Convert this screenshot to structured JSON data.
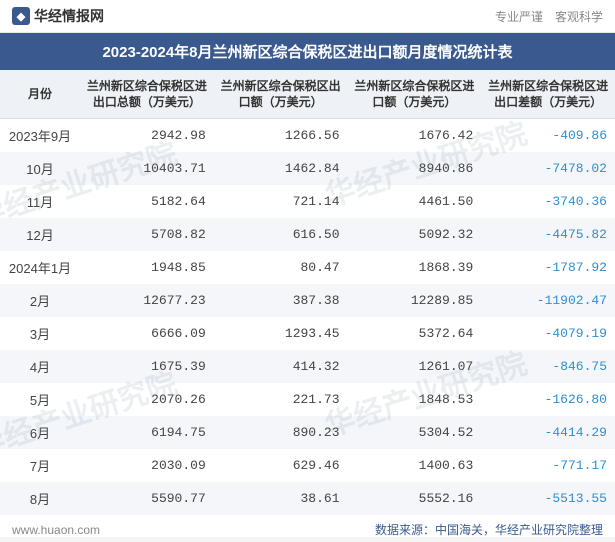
{
  "header": {
    "site_name": "华经情报网",
    "tagline": "专业严谨　客观科学"
  },
  "title": "2023-2024年8月兰州新区综合保税区进出口额月度情况统计表",
  "table": {
    "columns": [
      "月份",
      "兰州新区综合保税区进出口总额（万美元）",
      "兰州新区综合保税区出口额（万美元）",
      "兰州新区综合保税区进口额（万美元）",
      "兰州新区综合保税区进出口差额（万美元）"
    ],
    "rows": [
      {
        "month": "2023年9月",
        "total": "2942.98",
        "export": "1266.56",
        "import": "1676.42",
        "diff": "-409.86"
      },
      {
        "month": "10月",
        "total": "10403.71",
        "export": "1462.84",
        "import": "8940.86",
        "diff": "-7478.02"
      },
      {
        "month": "11月",
        "total": "5182.64",
        "export": "721.14",
        "import": "4461.50",
        "diff": "-3740.36"
      },
      {
        "month": "12月",
        "total": "5708.82",
        "export": "616.50",
        "import": "5092.32",
        "diff": "-4475.82"
      },
      {
        "month": "2024年1月",
        "total": "1948.85",
        "export": "80.47",
        "import": "1868.39",
        "diff": "-1787.92"
      },
      {
        "month": "2月",
        "total": "12677.23",
        "export": "387.38",
        "import": "12289.85",
        "diff": "-11902.47"
      },
      {
        "month": "3月",
        "total": "6666.09",
        "export": "1293.45",
        "import": "5372.64",
        "diff": "-4079.19"
      },
      {
        "month": "4月",
        "total": "1675.39",
        "export": "414.32",
        "import": "1261.07",
        "diff": "-846.75"
      },
      {
        "month": "5月",
        "total": "2070.26",
        "export": "221.73",
        "import": "1848.53",
        "diff": "-1626.80"
      },
      {
        "month": "6月",
        "total": "6194.75",
        "export": "890.23",
        "import": "5304.52",
        "diff": "-4414.29"
      },
      {
        "month": "7月",
        "total": "2030.09",
        "export": "629.46",
        "import": "1400.63",
        "diff": "-771.17"
      },
      {
        "month": "8月",
        "total": "5590.77",
        "export": "38.61",
        "import": "5552.16",
        "diff": "-5513.55"
      }
    ]
  },
  "footer": {
    "left": "www.huaon.com",
    "right": "数据来源：中国海关，华经产业研究院整理"
  },
  "watermark_text": "华经产业研究院",
  "colors": {
    "primary": "#3a5a8f",
    "header_bg": "#eef1f6",
    "stripe": "#f4f6fa",
    "neg": "#2e8fd4"
  }
}
